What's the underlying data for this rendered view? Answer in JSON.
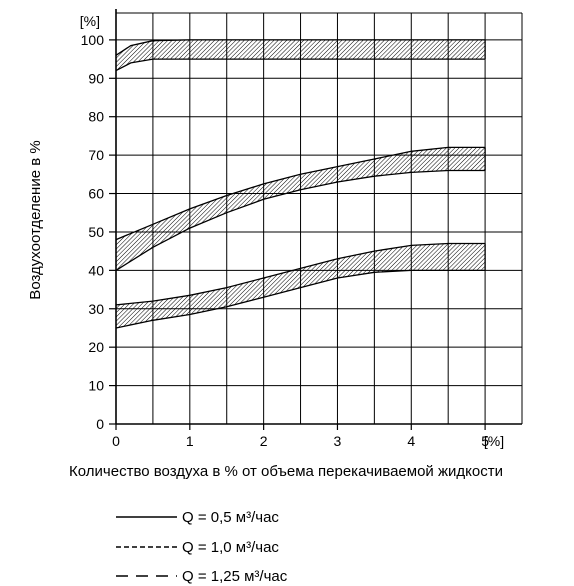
{
  "chart_data": {
    "type": "area",
    "xlabel": "Количество воздуха в % от объема перекачиваемой жидкости",
    "ylabel": "Воздухоотделение в %",
    "x_unit": "[%]",
    "y_unit": "[%]",
    "xlim": [
      0,
      5.5
    ],
    "ylim": [
      0,
      107
    ],
    "x_ticks": [
      "0",
      "1",
      "2",
      "3",
      "4",
      "5"
    ],
    "y_ticks": [
      "0",
      "10",
      "20",
      "30",
      "40",
      "50",
      "60",
      "70",
      "80",
      "90",
      "100"
    ],
    "grid": true,
    "legend_position": "below",
    "series": [
      {
        "name": "Q = 0,5 м³/час",
        "style": "solid",
        "upper": [
          [
            0,
            96
          ],
          [
            0.2,
            98.5
          ],
          [
            0.5,
            99.8
          ],
          [
            1,
            100
          ],
          [
            2,
            100
          ],
          [
            3,
            100
          ],
          [
            4,
            100
          ],
          [
            5,
            100
          ]
        ],
        "lower": [
          [
            0,
            92
          ],
          [
            0.2,
            94
          ],
          [
            0.5,
            95
          ],
          [
            1,
            95
          ],
          [
            2,
            95
          ],
          [
            3,
            95
          ],
          [
            4,
            95
          ],
          [
            5,
            95
          ]
        ]
      },
      {
        "name": "Q = 1,0 м³/час",
        "style": "dashed",
        "upper": [
          [
            0,
            48
          ],
          [
            0.5,
            52
          ],
          [
            1,
            56
          ],
          [
            1.5,
            59.5
          ],
          [
            2,
            62.5
          ],
          [
            2.5,
            65
          ],
          [
            3,
            67
          ],
          [
            3.5,
            69
          ],
          [
            4,
            71
          ],
          [
            4.5,
            72
          ],
          [
            5,
            72
          ]
        ],
        "lower": [
          [
            0,
            40
          ],
          [
            0.5,
            46
          ],
          [
            1,
            51
          ],
          [
            1.5,
            55
          ],
          [
            2,
            58.5
          ],
          [
            2.5,
            61
          ],
          [
            3,
            63
          ],
          [
            3.5,
            64.5
          ],
          [
            4,
            65.5
          ],
          [
            4.5,
            66
          ],
          [
            5,
            66
          ]
        ]
      },
      {
        "name": "Q = 1,25 м³/час",
        "style": "long-dashed",
        "upper": [
          [
            0,
            31
          ],
          [
            0.5,
            32
          ],
          [
            1,
            33.5
          ],
          [
            1.5,
            35.5
          ],
          [
            2,
            38
          ],
          [
            2.5,
            40.5
          ],
          [
            3,
            43
          ],
          [
            3.5,
            45
          ],
          [
            4,
            46.5
          ],
          [
            4.5,
            47
          ],
          [
            5,
            47
          ]
        ],
        "lower": [
          [
            0,
            25
          ],
          [
            0.5,
            27
          ],
          [
            1,
            28.5
          ],
          [
            1.5,
            30.5
          ],
          [
            2,
            33
          ],
          [
            2.5,
            35.5
          ],
          [
            3,
            38
          ],
          [
            3.5,
            39.5
          ],
          [
            4,
            40
          ],
          [
            4.5,
            40
          ],
          [
            5,
            40
          ]
        ]
      }
    ],
    "colors": {
      "line": "#000000",
      "background": "#ffffff"
    }
  }
}
